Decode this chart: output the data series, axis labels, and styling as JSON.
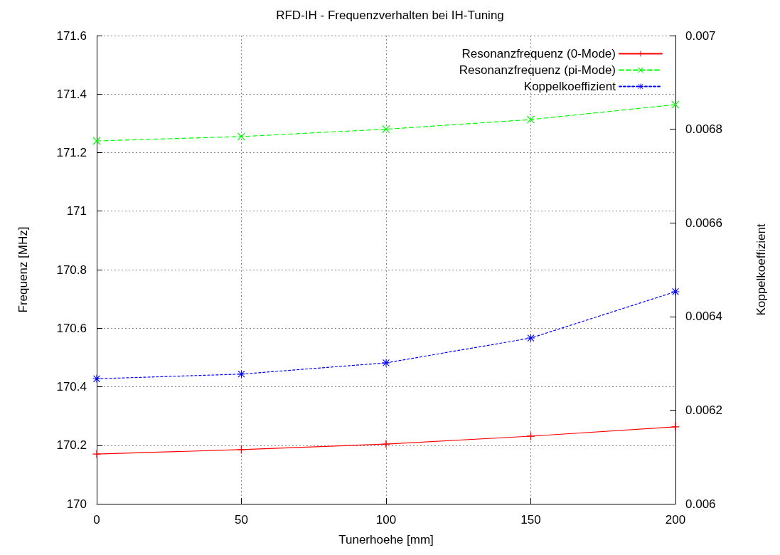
{
  "chart_data": {
    "type": "line",
    "title": "RFD-IH - Frequenzverhalten bei IH-Tuning",
    "xlabel": "Tunerhoehe [mm]",
    "ylabel": "Frequenz [MHz]",
    "y2label": "Koppelkoeffizient",
    "x": [
      0,
      50,
      100,
      150,
      200
    ],
    "series": [
      {
        "name": "Resonanzfrequenz (0-Mode)",
        "color": "#ff0000",
        "values": [
          170.17,
          170.185,
          170.204,
          170.231,
          170.263
        ],
        "marker": "cross",
        "line_style": "solid"
      },
      {
        "name": "Resonanzfrequenz (pi-Mode)",
        "color": "#00ff00",
        "values": [
          171.24,
          171.255,
          171.28,
          171.313,
          171.364
        ],
        "marker": "x",
        "line_style": "dashed"
      },
      {
        "name": "Koppelkoeffizient",
        "color": "#0000ff",
        "values": [
          0.006267,
          0.006277,
          0.006301,
          0.006354,
          0.006453
        ],
        "marker": "star",
        "line_style": "dotted",
        "axis": "y2"
      }
    ],
    "xlim": [
      0,
      200
    ],
    "xticks": [
      0,
      50,
      100,
      150,
      200
    ],
    "ylim": [
      170,
      171.6
    ],
    "yticks": [
      170,
      170.2,
      170.4,
      170.6,
      170.8,
      171,
      171.2,
      171.4,
      171.6
    ],
    "y2lim": [
      0.006,
      0.007
    ],
    "y2ticks": [
      0.006,
      0.0062,
      0.0064,
      0.0066,
      0.0068,
      0.007
    ],
    "grid": true,
    "legend": "top right"
  }
}
